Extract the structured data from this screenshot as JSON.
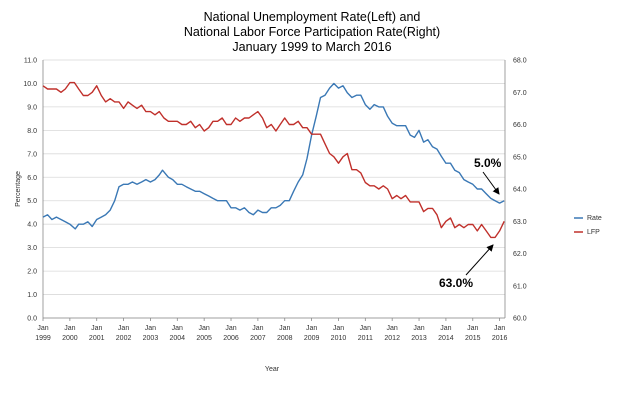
{
  "chart_data": {
    "type": "line",
    "title_lines": [
      "National Unemployment Rate(Left)  and",
      "National Labor Force Participation Rate(Right)",
      "January 1999 to March 2016"
    ],
    "xlabel": "Year",
    "ylabel": "Percentage",
    "y_left_range": [
      0,
      11
    ],
    "y_left_ticks": [
      "0.0",
      "1.0",
      "2.0",
      "3.0",
      "4.0",
      "5.0",
      "6.0",
      "7.0",
      "8.0",
      "9.0",
      "10.0",
      "11.0"
    ],
    "y_right_range": [
      60,
      68
    ],
    "y_right_ticks": [
      "60.0",
      "61.0",
      "62.0",
      "63.0",
      "64.0",
      "65.0",
      "66.0",
      "67.0",
      "68.0"
    ],
    "x_ticks": [
      {
        "month": "Jan",
        "year": "1999"
      },
      {
        "month": "Jan",
        "year": "2000"
      },
      {
        "month": "Jan",
        "year": "2001"
      },
      {
        "month": "Jan",
        "year": "2002"
      },
      {
        "month": "Jan",
        "year": "2003"
      },
      {
        "month": "Jan",
        "year": "2004"
      },
      {
        "month": "Jan",
        "year": "2005"
      },
      {
        "month": "Jan",
        "year": "2006"
      },
      {
        "month": "Jan",
        "year": "2007"
      },
      {
        "month": "Jan",
        "year": "2008"
      },
      {
        "month": "Jan",
        "year": "2009"
      },
      {
        "month": "Jan",
        "year": "2010"
      },
      {
        "month": "Jan",
        "year": "2011"
      },
      {
        "month": "Jan",
        "year": "2012"
      },
      {
        "month": "Jan",
        "year": "2013"
      },
      {
        "month": "Jan",
        "year": "2014"
      },
      {
        "month": "Jan",
        "year": "2015"
      },
      {
        "month": "Jan",
        "year": "2016"
      }
    ],
    "x_range_years": [
      1999.0,
      2016.2
    ],
    "legend": [
      {
        "name": "Rate",
        "color": "#3a78b5"
      },
      {
        "name": "LFP",
        "color": "#c0302b"
      }
    ],
    "legend_position": "right",
    "annotations": [
      {
        "text": "5.0%",
        "target": "Rate",
        "target_year": 2016.17,
        "target_value": 5.0
      },
      {
        "text": "63.0%",
        "target": "LFP",
        "target_year": 2015.92,
        "target_value": 62.4
      }
    ],
    "series": [
      {
        "name": "Rate",
        "axis": "left",
        "color": "#3a78b5",
        "points": [
          [
            1999.0,
            4.3
          ],
          [
            1999.17,
            4.4
          ],
          [
            1999.33,
            4.2
          ],
          [
            1999.5,
            4.3
          ],
          [
            1999.67,
            4.2
          ],
          [
            1999.83,
            4.1
          ],
          [
            2000.0,
            4.0
          ],
          [
            2000.2,
            3.8
          ],
          [
            2000.33,
            4.0
          ],
          [
            2000.5,
            4.0
          ],
          [
            2000.67,
            4.1
          ],
          [
            2000.83,
            3.9
          ],
          [
            2001.0,
            4.2
          ],
          [
            2001.17,
            4.3
          ],
          [
            2001.33,
            4.4
          ],
          [
            2001.5,
            4.6
          ],
          [
            2001.67,
            5.0
          ],
          [
            2001.83,
            5.6
          ],
          [
            2002.0,
            5.7
          ],
          [
            2002.17,
            5.7
          ],
          [
            2002.33,
            5.8
          ],
          [
            2002.5,
            5.7
          ],
          [
            2002.67,
            5.8
          ],
          [
            2002.83,
            5.9
          ],
          [
            2003.0,
            5.8
          ],
          [
            2003.17,
            5.9
          ],
          [
            2003.33,
            6.1
          ],
          [
            2003.45,
            6.3
          ],
          [
            2003.67,
            6.0
          ],
          [
            2003.83,
            5.9
          ],
          [
            2004.0,
            5.7
          ],
          [
            2004.17,
            5.7
          ],
          [
            2004.33,
            5.6
          ],
          [
            2004.5,
            5.5
          ],
          [
            2004.67,
            5.4
          ],
          [
            2004.83,
            5.4
          ],
          [
            2005.0,
            5.3
          ],
          [
            2005.17,
            5.2
          ],
          [
            2005.33,
            5.1
          ],
          [
            2005.5,
            5.0
          ],
          [
            2005.67,
            5.0
          ],
          [
            2005.83,
            5.0
          ],
          [
            2006.0,
            4.7
          ],
          [
            2006.17,
            4.7
          ],
          [
            2006.33,
            4.6
          ],
          [
            2006.5,
            4.7
          ],
          [
            2006.67,
            4.5
          ],
          [
            2006.83,
            4.4
          ],
          [
            2007.0,
            4.6
          ],
          [
            2007.17,
            4.5
          ],
          [
            2007.33,
            4.5
          ],
          [
            2007.5,
            4.7
          ],
          [
            2007.67,
            4.7
          ],
          [
            2007.83,
            4.8
          ],
          [
            2008.0,
            5.0
          ],
          [
            2008.17,
            5.0
          ],
          [
            2008.33,
            5.4
          ],
          [
            2008.5,
            5.8
          ],
          [
            2008.67,
            6.1
          ],
          [
            2008.83,
            6.8
          ],
          [
            2009.0,
            7.8
          ],
          [
            2009.17,
            8.6
          ],
          [
            2009.33,
            9.4
          ],
          [
            2009.5,
            9.5
          ],
          [
            2009.67,
            9.8
          ],
          [
            2009.83,
            10.0
          ],
          [
            2010.0,
            9.8
          ],
          [
            2010.17,
            9.9
          ],
          [
            2010.33,
            9.6
          ],
          [
            2010.5,
            9.4
          ],
          [
            2010.67,
            9.5
          ],
          [
            2010.83,
            9.5
          ],
          [
            2011.0,
            9.1
          ],
          [
            2011.17,
            8.9
          ],
          [
            2011.33,
            9.1
          ],
          [
            2011.5,
            9.0
          ],
          [
            2011.67,
            9.0
          ],
          [
            2011.83,
            8.6
          ],
          [
            2012.0,
            8.3
          ],
          [
            2012.17,
            8.2
          ],
          [
            2012.33,
            8.2
          ],
          [
            2012.5,
            8.2
          ],
          [
            2012.67,
            7.8
          ],
          [
            2012.83,
            7.7
          ],
          [
            2013.0,
            8.0
          ],
          [
            2013.17,
            7.5
          ],
          [
            2013.33,
            7.6
          ],
          [
            2013.5,
            7.3
          ],
          [
            2013.67,
            7.2
          ],
          [
            2013.83,
            6.9
          ],
          [
            2014.0,
            6.6
          ],
          [
            2014.17,
            6.6
          ],
          [
            2014.33,
            6.3
          ],
          [
            2014.5,
            6.2
          ],
          [
            2014.67,
            5.9
          ],
          [
            2014.83,
            5.8
          ],
          [
            2015.0,
            5.7
          ],
          [
            2015.17,
            5.5
          ],
          [
            2015.33,
            5.5
          ],
          [
            2015.5,
            5.3
          ],
          [
            2015.67,
            5.1
          ],
          [
            2015.83,
            5.0
          ],
          [
            2016.0,
            4.9
          ],
          [
            2016.17,
            5.0
          ]
        ]
      },
      {
        "name": "LFP",
        "axis": "right",
        "color": "#c0302b",
        "points": [
          [
            1999.0,
            67.2
          ],
          [
            1999.17,
            67.1
          ],
          [
            1999.33,
            67.1
          ],
          [
            1999.5,
            67.1
          ],
          [
            1999.67,
            67.0
          ],
          [
            1999.83,
            67.1
          ],
          [
            2000.0,
            67.3
          ],
          [
            2000.17,
            67.3
          ],
          [
            2000.33,
            67.1
          ],
          [
            2000.5,
            66.9
          ],
          [
            2000.67,
            66.9
          ],
          [
            2000.83,
            67.0
          ],
          [
            2001.0,
            67.2
          ],
          [
            2001.17,
            66.9
          ],
          [
            2001.33,
            66.7
          ],
          [
            2001.5,
            66.8
          ],
          [
            2001.67,
            66.7
          ],
          [
            2001.83,
            66.7
          ],
          [
            2002.0,
            66.5
          ],
          [
            2002.17,
            66.7
          ],
          [
            2002.33,
            66.6
          ],
          [
            2002.5,
            66.5
          ],
          [
            2002.67,
            66.6
          ],
          [
            2002.83,
            66.4
          ],
          [
            2003.0,
            66.4
          ],
          [
            2003.17,
            66.3
          ],
          [
            2003.33,
            66.4
          ],
          [
            2003.5,
            66.2
          ],
          [
            2003.67,
            66.1
          ],
          [
            2003.83,
            66.1
          ],
          [
            2004.0,
            66.1
          ],
          [
            2004.17,
            66.0
          ],
          [
            2004.33,
            66.0
          ],
          [
            2004.5,
            66.1
          ],
          [
            2004.67,
            65.9
          ],
          [
            2004.83,
            66.0
          ],
          [
            2005.0,
            65.8
          ],
          [
            2005.17,
            65.9
          ],
          [
            2005.33,
            66.1
          ],
          [
            2005.5,
            66.1
          ],
          [
            2005.67,
            66.2
          ],
          [
            2005.83,
            66.0
          ],
          [
            2006.0,
            66.0
          ],
          [
            2006.17,
            66.2
          ],
          [
            2006.33,
            66.1
          ],
          [
            2006.5,
            66.2
          ],
          [
            2006.67,
            66.2
          ],
          [
            2006.83,
            66.3
          ],
          [
            2007.0,
            66.4
          ],
          [
            2007.17,
            66.2
          ],
          [
            2007.33,
            65.9
          ],
          [
            2007.5,
            66.0
          ],
          [
            2007.67,
            65.8
          ],
          [
            2007.83,
            66.0
          ],
          [
            2008.0,
            66.2
          ],
          [
            2008.17,
            66.0
          ],
          [
            2008.33,
            66.0
          ],
          [
            2008.5,
            66.1
          ],
          [
            2008.67,
            65.9
          ],
          [
            2008.83,
            65.9
          ],
          [
            2009.0,
            65.7
          ],
          [
            2009.17,
            65.7
          ],
          [
            2009.33,
            65.7
          ],
          [
            2009.5,
            65.4
          ],
          [
            2009.67,
            65.1
          ],
          [
            2009.83,
            65.0
          ],
          [
            2010.0,
            64.8
          ],
          [
            2010.17,
            65.0
          ],
          [
            2010.33,
            65.1
          ],
          [
            2010.5,
            64.6
          ],
          [
            2010.67,
            64.6
          ],
          [
            2010.83,
            64.5
          ],
          [
            2011.0,
            64.2
          ],
          [
            2011.17,
            64.1
          ],
          [
            2011.33,
            64.1
          ],
          [
            2011.5,
            64.0
          ],
          [
            2011.67,
            64.1
          ],
          [
            2011.83,
            64.0
          ],
          [
            2012.0,
            63.7
          ],
          [
            2012.17,
            63.8
          ],
          [
            2012.33,
            63.7
          ],
          [
            2012.5,
            63.8
          ],
          [
            2012.67,
            63.6
          ],
          [
            2012.83,
            63.6
          ],
          [
            2013.0,
            63.6
          ],
          [
            2013.17,
            63.3
          ],
          [
            2013.33,
            63.4
          ],
          [
            2013.5,
            63.4
          ],
          [
            2013.67,
            63.2
          ],
          [
            2013.83,
            62.8
          ],
          [
            2014.0,
            63.0
          ],
          [
            2014.17,
            63.1
          ],
          [
            2014.33,
            62.8
          ],
          [
            2014.5,
            62.9
          ],
          [
            2014.67,
            62.8
          ],
          [
            2014.83,
            62.9
          ],
          [
            2015.0,
            62.9
          ],
          [
            2015.17,
            62.7
          ],
          [
            2015.33,
            62.9
          ],
          [
            2015.5,
            62.7
          ],
          [
            2015.67,
            62.5
          ],
          [
            2015.83,
            62.5
          ],
          [
            2016.0,
            62.7
          ],
          [
            2016.17,
            63.0
          ]
        ]
      }
    ]
  }
}
